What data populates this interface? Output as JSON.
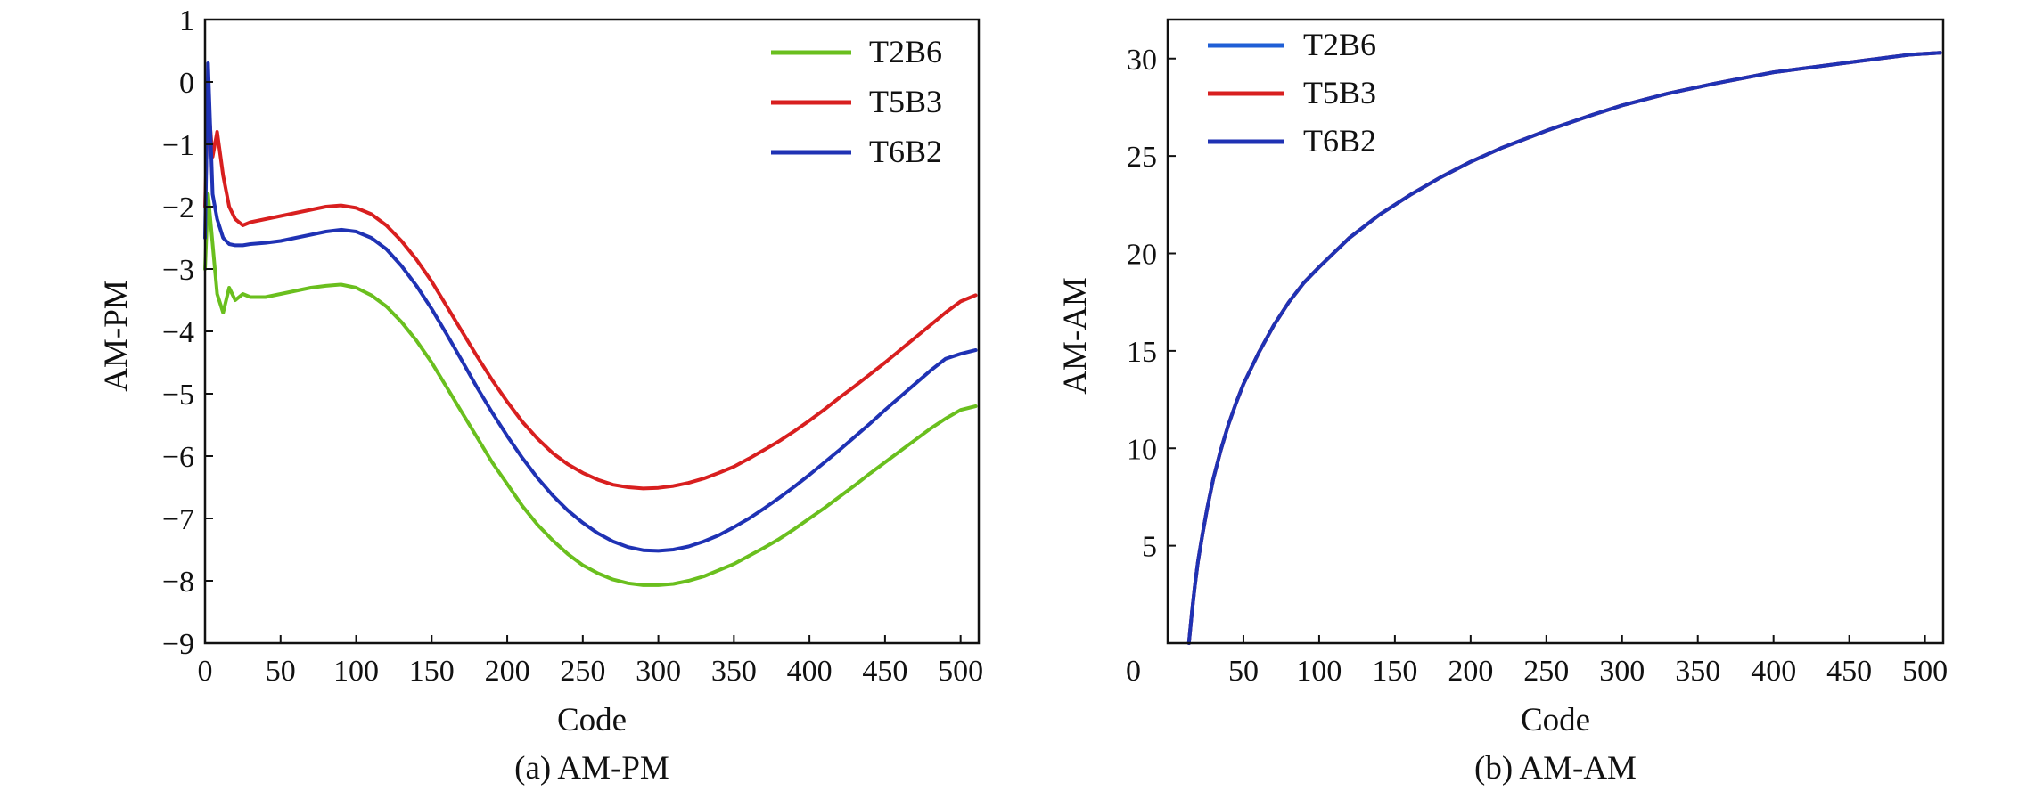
{
  "chart_data": [
    {
      "type": "line",
      "caption": "(a) AM-PM",
      "xlabel": "Code",
      "ylabel": "AM-PM",
      "xlim": [
        0,
        512
      ],
      "ylim": [
        -9,
        1
      ],
      "xticks": [
        0,
        50,
        100,
        150,
        200,
        250,
        300,
        350,
        400,
        450,
        500
      ],
      "yticks": [
        1,
        0,
        -1,
        -2,
        -3,
        -4,
        -5,
        -6,
        -7,
        -8,
        -9
      ],
      "legend_position": "top-right",
      "colors": {
        "T2B6": "#6abf1e",
        "T5B3": "#d81f1f",
        "T6B2": "#1f32b4"
      },
      "series": [
        {
          "name": "T2B6",
          "x": [
            0,
            2,
            5,
            8,
            12,
            16,
            20,
            25,
            30,
            40,
            50,
            60,
            70,
            80,
            90,
            100,
            110,
            120,
            130,
            140,
            150,
            160,
            170,
            180,
            190,
            200,
            210,
            220,
            230,
            240,
            250,
            260,
            270,
            280,
            290,
            300,
            310,
            320,
            330,
            340,
            350,
            360,
            370,
            380,
            390,
            400,
            410,
            420,
            430,
            440,
            450,
            460,
            470,
            480,
            490,
            500,
            510
          ],
          "y": [
            -3.0,
            -1.8,
            -2.6,
            -3.4,
            -3.7,
            -3.3,
            -3.5,
            -3.4,
            -3.45,
            -3.45,
            -3.4,
            -3.35,
            -3.3,
            -3.27,
            -3.25,
            -3.3,
            -3.42,
            -3.6,
            -3.85,
            -4.15,
            -4.5,
            -4.9,
            -5.3,
            -5.7,
            -6.1,
            -6.45,
            -6.8,
            -7.1,
            -7.35,
            -7.57,
            -7.75,
            -7.88,
            -7.98,
            -8.04,
            -8.07,
            -8.07,
            -8.05,
            -8.0,
            -7.93,
            -7.83,
            -7.73,
            -7.6,
            -7.47,
            -7.33,
            -7.17,
            -7.0,
            -6.83,
            -6.65,
            -6.47,
            -6.28,
            -6.1,
            -5.92,
            -5.74,
            -5.56,
            -5.4,
            -5.26,
            -5.2
          ]
        },
        {
          "name": "T5B3",
          "x": [
            0,
            2,
            5,
            8,
            12,
            16,
            20,
            25,
            30,
            40,
            50,
            60,
            70,
            80,
            90,
            100,
            110,
            120,
            130,
            140,
            150,
            160,
            170,
            180,
            190,
            200,
            210,
            220,
            230,
            240,
            250,
            260,
            270,
            280,
            290,
            300,
            310,
            320,
            330,
            340,
            350,
            360,
            370,
            380,
            390,
            400,
            410,
            420,
            430,
            440,
            450,
            460,
            470,
            480,
            490,
            500,
            510
          ],
          "y": [
            -2.0,
            -0.3,
            -1.2,
            -0.8,
            -1.5,
            -2.0,
            -2.2,
            -2.3,
            -2.25,
            -2.2,
            -2.15,
            -2.1,
            -2.05,
            -2.0,
            -1.98,
            -2.02,
            -2.12,
            -2.3,
            -2.55,
            -2.85,
            -3.2,
            -3.6,
            -4.0,
            -4.4,
            -4.78,
            -5.13,
            -5.45,
            -5.72,
            -5.95,
            -6.13,
            -6.27,
            -6.38,
            -6.46,
            -6.5,
            -6.52,
            -6.51,
            -6.48,
            -6.43,
            -6.36,
            -6.27,
            -6.17,
            -6.04,
            -5.9,
            -5.76,
            -5.6,
            -5.43,
            -5.25,
            -5.06,
            -4.88,
            -4.69,
            -4.5,
            -4.3,
            -4.1,
            -3.9,
            -3.7,
            -3.52,
            -3.42
          ]
        },
        {
          "name": "T6B2",
          "x": [
            0,
            2,
            5,
            8,
            12,
            16,
            20,
            25,
            30,
            40,
            50,
            60,
            70,
            80,
            90,
            100,
            110,
            120,
            130,
            140,
            150,
            160,
            170,
            180,
            190,
            200,
            210,
            220,
            230,
            240,
            250,
            260,
            270,
            280,
            290,
            300,
            310,
            320,
            330,
            340,
            350,
            360,
            370,
            380,
            390,
            400,
            410,
            420,
            430,
            440,
            450,
            460,
            470,
            480,
            490,
            500,
            510
          ],
          "y": [
            -2.5,
            0.3,
            -1.8,
            -2.2,
            -2.5,
            -2.6,
            -2.62,
            -2.62,
            -2.6,
            -2.58,
            -2.55,
            -2.5,
            -2.45,
            -2.4,
            -2.37,
            -2.4,
            -2.5,
            -2.68,
            -2.95,
            -3.27,
            -3.64,
            -4.05,
            -4.47,
            -4.9,
            -5.3,
            -5.68,
            -6.03,
            -6.35,
            -6.63,
            -6.87,
            -7.07,
            -7.24,
            -7.37,
            -7.46,
            -7.51,
            -7.52,
            -7.5,
            -7.45,
            -7.37,
            -7.27,
            -7.14,
            -7.0,
            -6.84,
            -6.67,
            -6.49,
            -6.3,
            -6.1,
            -5.9,
            -5.69,
            -5.48,
            -5.26,
            -5.05,
            -4.84,
            -4.63,
            -4.44,
            -4.36,
            -4.3
          ]
        }
      ]
    },
    {
      "type": "line",
      "caption": "(b) AM-AM",
      "xlabel": "Code",
      "ylabel": "AM-AM",
      "xlim": [
        0,
        512
      ],
      "ylim": [
        0,
        32
      ],
      "xticks": [
        50,
        100,
        150,
        200,
        250,
        300,
        350,
        400,
        450,
        500
      ],
      "yticks": [
        30,
        25,
        20,
        15,
        10,
        5
      ],
      "origin_label": "0",
      "legend_position": "top-left",
      "colors": {
        "T2B6": "#1f5fd6",
        "T5B3": "#d81f1f",
        "T6B2": "#1f32b4"
      },
      "series": [
        {
          "name": "T2B6",
          "x": [
            14,
            16,
            18,
            20,
            23,
            26,
            30,
            35,
            40,
            45,
            50,
            60,
            70,
            80,
            90,
            100,
            120,
            140,
            160,
            180,
            200,
            220,
            250,
            280,
            300,
            330,
            360,
            400,
            430,
            460,
            490,
            510
          ],
          "y": [
            0.0,
            1.6,
            3.0,
            4.2,
            5.6,
            6.9,
            8.4,
            9.9,
            11.2,
            12.3,
            13.3,
            14.9,
            16.3,
            17.5,
            18.5,
            19.3,
            20.8,
            22.0,
            23.0,
            23.9,
            24.7,
            25.4,
            26.3,
            27.1,
            27.6,
            28.2,
            28.7,
            29.3,
            29.6,
            29.9,
            30.2,
            30.3
          ]
        },
        {
          "name": "T5B3",
          "x": [
            14,
            16,
            18,
            20,
            23,
            26,
            30,
            35,
            40,
            45,
            50,
            60,
            70,
            80,
            90,
            100,
            120,
            140,
            160,
            180,
            200,
            220,
            250,
            280,
            300,
            330,
            360,
            400,
            430,
            460,
            490,
            510
          ],
          "y": [
            0.0,
            1.6,
            3.0,
            4.2,
            5.6,
            6.9,
            8.4,
            9.9,
            11.2,
            12.3,
            13.3,
            14.9,
            16.3,
            17.5,
            18.5,
            19.3,
            20.8,
            22.0,
            23.0,
            23.9,
            24.7,
            25.4,
            26.3,
            27.1,
            27.6,
            28.2,
            28.7,
            29.3,
            29.6,
            29.9,
            30.2,
            30.3
          ]
        },
        {
          "name": "T6B2",
          "x": [
            14,
            16,
            18,
            20,
            23,
            26,
            30,
            35,
            40,
            45,
            50,
            60,
            70,
            80,
            90,
            100,
            120,
            140,
            160,
            180,
            200,
            220,
            250,
            280,
            300,
            330,
            360,
            400,
            430,
            460,
            490,
            510
          ],
          "y": [
            0.0,
            1.6,
            3.0,
            4.2,
            5.6,
            6.9,
            8.4,
            9.9,
            11.2,
            12.3,
            13.3,
            14.9,
            16.3,
            17.5,
            18.5,
            19.3,
            20.8,
            22.0,
            23.0,
            23.9,
            24.7,
            25.4,
            26.3,
            27.1,
            27.6,
            28.2,
            28.7,
            29.3,
            29.6,
            29.9,
            30.2,
            30.3
          ]
        }
      ]
    }
  ]
}
